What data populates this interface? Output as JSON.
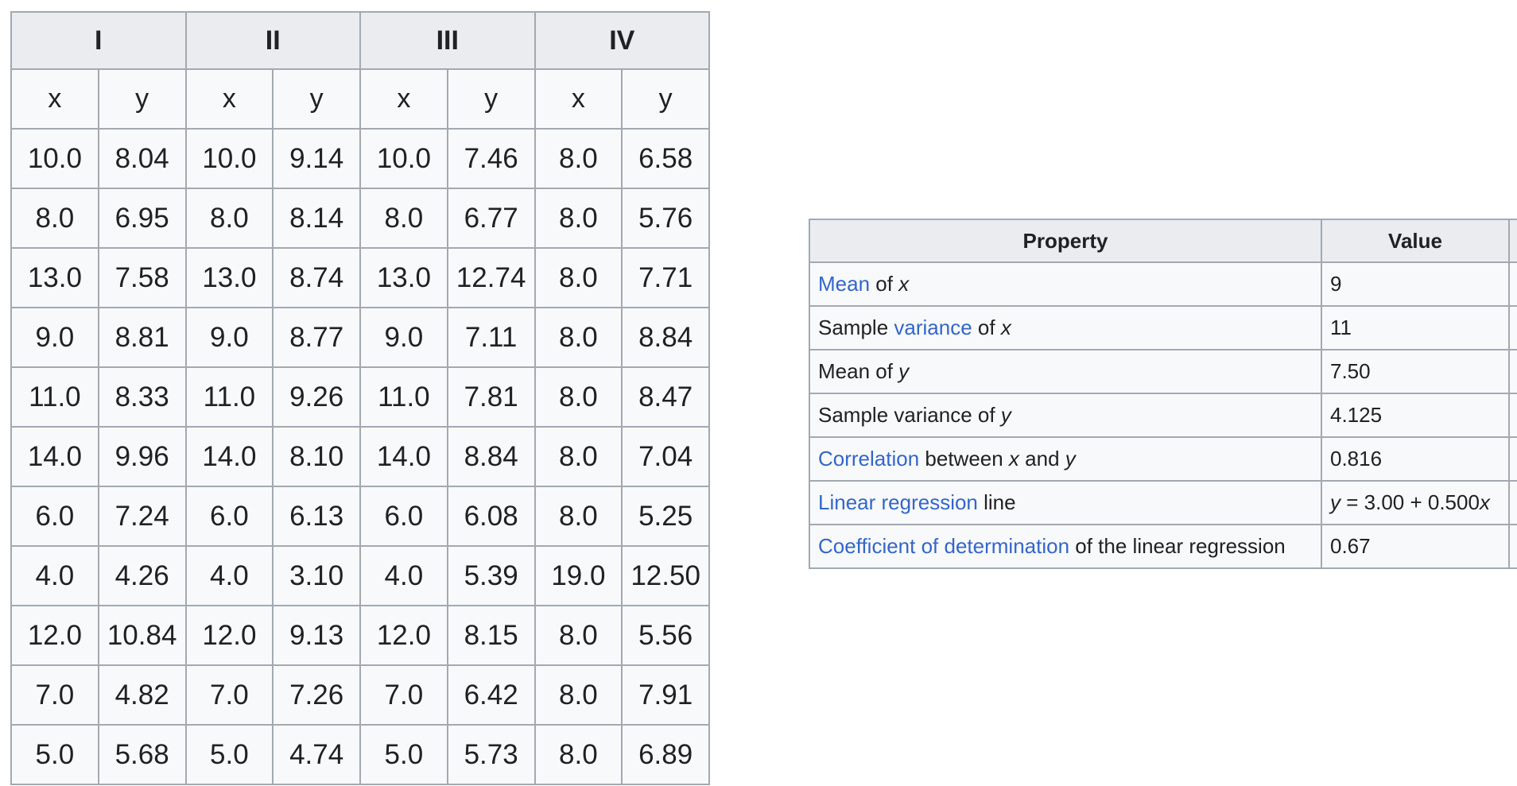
{
  "data_table": {
    "groups": [
      "I",
      "II",
      "III",
      "IV"
    ],
    "axis_labels": [
      "x",
      "y",
      "x",
      "y",
      "x",
      "y",
      "x",
      "y"
    ],
    "rows": [
      [
        "10.0",
        "8.04",
        "10.0",
        "9.14",
        "10.0",
        "7.46",
        "8.0",
        "6.58"
      ],
      [
        "8.0",
        "6.95",
        "8.0",
        "8.14",
        "8.0",
        "6.77",
        "8.0",
        "5.76"
      ],
      [
        "13.0",
        "7.58",
        "13.0",
        "8.74",
        "13.0",
        "12.74",
        "8.0",
        "7.71"
      ],
      [
        "9.0",
        "8.81",
        "9.0",
        "8.77",
        "9.0",
        "7.11",
        "8.0",
        "8.84"
      ],
      [
        "11.0",
        "8.33",
        "11.0",
        "9.26",
        "11.0",
        "7.81",
        "8.0",
        "8.47"
      ],
      [
        "14.0",
        "9.96",
        "14.0",
        "8.10",
        "14.0",
        "8.84",
        "8.0",
        "7.04"
      ],
      [
        "6.0",
        "7.24",
        "6.0",
        "6.13",
        "6.0",
        "6.08",
        "8.0",
        "5.25"
      ],
      [
        "4.0",
        "4.26",
        "4.0",
        "3.10",
        "4.0",
        "5.39",
        "19.0",
        "12.50"
      ],
      [
        "12.0",
        "10.84",
        "12.0",
        "9.13",
        "12.0",
        "8.15",
        "8.0",
        "5.56"
      ],
      [
        "7.0",
        "4.82",
        "7.0",
        "7.26",
        "7.0",
        "6.42",
        "8.0",
        "7.91"
      ],
      [
        "5.0",
        "5.68",
        "5.0",
        "4.74",
        "5.0",
        "5.73",
        "8.0",
        "6.89"
      ]
    ]
  },
  "summary_table": {
    "headers": {
      "property": "Property",
      "value": "Value"
    },
    "rows": [
      {
        "property": [
          {
            "text": "Mean",
            "style": "link"
          },
          {
            "text": " of ",
            "style": "plain"
          },
          {
            "text": "x",
            "style": "var"
          }
        ],
        "value": [
          {
            "text": "9",
            "style": "plain"
          }
        ]
      },
      {
        "property": [
          {
            "text": "Sample ",
            "style": "plain"
          },
          {
            "text": "variance",
            "style": "link"
          },
          {
            "text": " of ",
            "style": "plain"
          },
          {
            "text": "x",
            "style": "var"
          }
        ],
        "value": [
          {
            "text": "11",
            "style": "plain"
          }
        ]
      },
      {
        "property": [
          {
            "text": "Mean of ",
            "style": "plain"
          },
          {
            "text": "y",
            "style": "var"
          }
        ],
        "value": [
          {
            "text": "7.50",
            "style": "plain"
          }
        ]
      },
      {
        "property": [
          {
            "text": "Sample variance of ",
            "style": "plain"
          },
          {
            "text": "y",
            "style": "var"
          }
        ],
        "value": [
          {
            "text": "4.125",
            "style": "plain"
          }
        ]
      },
      {
        "property": [
          {
            "text": "Correlation",
            "style": "link"
          },
          {
            "text": " between ",
            "style": "plain"
          },
          {
            "text": "x",
            "style": "var"
          },
          {
            "text": " and ",
            "style": "plain"
          },
          {
            "text": "y",
            "style": "var"
          }
        ],
        "value": [
          {
            "text": "0.816",
            "style": "plain"
          }
        ]
      },
      {
        "property": [
          {
            "text": "Linear regression",
            "style": "link"
          },
          {
            "text": " line",
            "style": "plain"
          }
        ],
        "value": [
          {
            "text": "y",
            "style": "var"
          },
          {
            "text": " = 3.00 + 0.500",
            "style": "plain"
          },
          {
            "text": "x",
            "style": "var"
          }
        ]
      },
      {
        "property": [
          {
            "text": "Coefficient of determination",
            "style": "link"
          },
          {
            "text": " of the linear regression",
            "style": "plain"
          }
        ],
        "value": [
          {
            "text": "0.67",
            "style": "plain"
          }
        ]
      }
    ]
  },
  "colors": {
    "link": "#3366cc",
    "header_bg": "#eaecf0",
    "cell_bg": "#f8f9fa",
    "border": "#a2a9b1",
    "text": "#202122"
  }
}
